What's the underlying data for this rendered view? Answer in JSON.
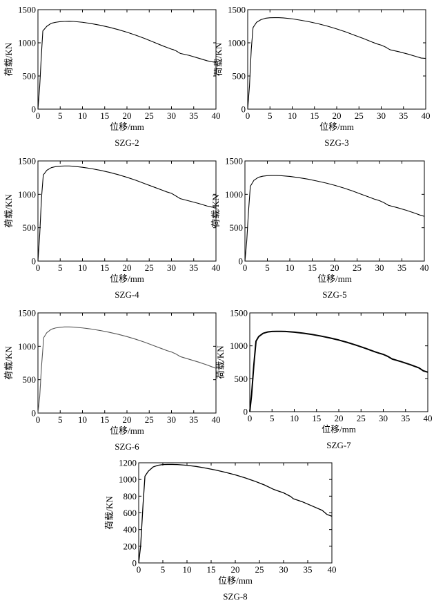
{
  "figure": {
    "background": "#ffffff"
  },
  "chart_data": [
    {
      "type": "line",
      "title": "SZG-2",
      "xlabel": "位移/mm",
      "ylabel": "荷载/KN",
      "xlim": [
        0,
        40
      ],
      "ylim": [
        0,
        1500
      ],
      "xticks": [
        0,
        5,
        10,
        15,
        20,
        25,
        30,
        35,
        40
      ],
      "yticks": [
        0,
        500,
        1000,
        1500
      ],
      "grid": false,
      "color": "#000000",
      "series": [
        {
          "x": [
            0,
            0.4,
            0.8,
            1.1,
            2,
            3,
            4,
            5,
            6,
            7,
            8,
            10,
            12,
            14,
            16,
            18,
            20,
            22,
            24,
            26,
            28,
            29,
            30,
            30.5,
            31,
            31.5,
            32,
            34,
            36,
            38,
            39,
            40
          ],
          "y": [
            0,
            350,
            850,
            1180,
            1250,
            1295,
            1310,
            1320,
            1323,
            1325,
            1323,
            1310,
            1290,
            1265,
            1235,
            1200,
            1160,
            1115,
            1065,
            1010,
            955,
            930,
            905,
            895,
            880,
            860,
            840,
            810,
            770,
            730,
            715,
            705
          ]
        }
      ]
    },
    {
      "type": "line",
      "title": "SZG-3",
      "xlabel": "位移/mm",
      "ylabel": "荷载/KN",
      "xlim": [
        0,
        40
      ],
      "ylim": [
        0,
        1500
      ],
      "xticks": [
        0,
        5,
        10,
        15,
        20,
        25,
        30,
        35,
        40
      ],
      "yticks": [
        0,
        500,
        1000,
        1500
      ],
      "grid": false,
      "color": "#000000",
      "series": [
        {
          "x": [
            0,
            0.4,
            0.8,
            1.2,
            2,
            3,
            4,
            5,
            6,
            7,
            8,
            10,
            12,
            14,
            16,
            18,
            20,
            22,
            24,
            26,
            28,
            29,
            30,
            30.5,
            31,
            31.5,
            32,
            34,
            36,
            38,
            39,
            40
          ],
          "y": [
            0,
            350,
            900,
            1230,
            1310,
            1350,
            1370,
            1378,
            1380,
            1380,
            1376,
            1362,
            1340,
            1315,
            1285,
            1250,
            1210,
            1165,
            1115,
            1065,
            1010,
            985,
            965,
            950,
            935,
            915,
            895,
            865,
            830,
            790,
            770,
            765
          ]
        }
      ]
    },
    {
      "type": "line",
      "title": "SZG-4",
      "xlabel": "位移/mm",
      "ylabel": "荷载/KN",
      "xlim": [
        0,
        40
      ],
      "ylim": [
        0,
        1500
      ],
      "xticks": [
        0,
        5,
        10,
        15,
        20,
        25,
        30,
        35,
        40
      ],
      "yticks": [
        0,
        500,
        1000,
        1500
      ],
      "grid": false,
      "color": "#000000",
      "series": [
        {
          "x": [
            0,
            0.4,
            0.8,
            1.2,
            2,
            3,
            4,
            5,
            6,
            7,
            8,
            10,
            12,
            14,
            16,
            18,
            20,
            22,
            24,
            26,
            28,
            29,
            30,
            30.5,
            31,
            31.5,
            32,
            34,
            36,
            38,
            39,
            40
          ],
          "y": [
            0,
            400,
            950,
            1290,
            1360,
            1400,
            1415,
            1422,
            1425,
            1425,
            1420,
            1405,
            1385,
            1360,
            1330,
            1295,
            1255,
            1210,
            1160,
            1110,
            1060,
            1035,
            1015,
            995,
            975,
            955,
            935,
            900,
            865,
            825,
            810,
            805
          ]
        }
      ]
    },
    {
      "type": "line",
      "title": "SZG-5",
      "xlabel": "位移/mm",
      "ylabel": "荷载/KN",
      "xlim": [
        0,
        40
      ],
      "ylim": [
        0,
        1500
      ],
      "xticks": [
        0,
        5,
        10,
        15,
        20,
        25,
        30,
        35,
        40
      ],
      "yticks": [
        0,
        500,
        1000,
        1500
      ],
      "grid": false,
      "color": "#000000",
      "series": [
        {
          "x": [
            0,
            0.4,
            0.8,
            1.2,
            2,
            3,
            4,
            5,
            6,
            7,
            8,
            10,
            12,
            14,
            16,
            18,
            20,
            22,
            24,
            26,
            28,
            29,
            30,
            30.5,
            31,
            31.5,
            32,
            34,
            36,
            38,
            39,
            40
          ],
          "y": [
            0,
            300,
            750,
            1120,
            1210,
            1255,
            1272,
            1280,
            1282,
            1282,
            1279,
            1268,
            1250,
            1228,
            1200,
            1170,
            1135,
            1095,
            1050,
            1000,
            950,
            925,
            905,
            890,
            875,
            855,
            835,
            800,
            760,
            715,
            690,
            670
          ]
        }
      ]
    },
    {
      "type": "line",
      "title": "SZG-6",
      "xlabel": "位移/mm",
      "ylabel": "荷载/KN",
      "xlim": [
        0,
        40
      ],
      "ylim": [
        0,
        1500
      ],
      "xticks": [
        0,
        5,
        10,
        15,
        20,
        25,
        30,
        35,
        40
      ],
      "yticks": [
        0,
        500,
        1000,
        1500
      ],
      "grid": false,
      "color": "#555555",
      "series": [
        {
          "x": [
            0,
            0.4,
            0.8,
            1.3,
            2,
            3,
            4,
            5,
            6,
            7,
            8,
            10,
            12,
            14,
            16,
            18,
            20,
            22,
            24,
            26,
            28,
            29,
            30,
            30.5,
            31,
            31.5,
            32,
            34,
            36,
            38,
            39,
            40
          ],
          "y": [
            0,
            250,
            700,
            1130,
            1205,
            1255,
            1275,
            1285,
            1290,
            1290,
            1287,
            1275,
            1258,
            1236,
            1210,
            1180,
            1145,
            1105,
            1060,
            1010,
            960,
            935,
            915,
            900,
            885,
            865,
            845,
            805,
            765,
            720,
            695,
            670
          ]
        }
      ]
    },
    {
      "type": "line",
      "title": "SZG-7",
      "xlabel": "位移/mm",
      "ylabel": "荷载/KN",
      "xlim": [
        0,
        40
      ],
      "ylim": [
        0,
        1500
      ],
      "xticks": [
        0,
        5,
        10,
        15,
        20,
        25,
        30,
        35,
        40
      ],
      "yticks": [
        0,
        500,
        1000,
        1500
      ],
      "grid": false,
      "color": "#000000",
      "series": [
        {
          "x": [
            0,
            0.4,
            0.9,
            1.4,
            2,
            3,
            4,
            5,
            6,
            7,
            8,
            10,
            12,
            14,
            16,
            18,
            20,
            22,
            24,
            26,
            28,
            29,
            30,
            30.5,
            31,
            31.5,
            32,
            34,
            36,
            38,
            39,
            40
          ],
          "y": [
            0,
            250,
            700,
            1070,
            1140,
            1190,
            1210,
            1218,
            1220,
            1220,
            1218,
            1208,
            1192,
            1172,
            1148,
            1120,
            1088,
            1050,
            1008,
            962,
            912,
            890,
            870,
            855,
            840,
            820,
            800,
            760,
            715,
            665,
            620,
            600
          ]
        }
      ]
    },
    {
      "type": "line",
      "title": "SZG-8",
      "xlabel": "位移/mm",
      "ylabel": "荷载/KN",
      "xlim": [
        0,
        40
      ],
      "ylim": [
        0,
        1200
      ],
      "xticks": [
        0,
        5,
        10,
        15,
        20,
        25,
        30,
        35,
        40
      ],
      "yticks": [
        0,
        200,
        400,
        600,
        800,
        1000,
        1200
      ],
      "grid": false,
      "color": "#000000",
      "series": [
        {
          "x": [
            0,
            0.4,
            0.9,
            1.3,
            2,
            3,
            4,
            5,
            6,
            7,
            8,
            10,
            12,
            14,
            16,
            18,
            20,
            22,
            24,
            26,
            28,
            29,
            30,
            30.5,
            31,
            31.5,
            32,
            34,
            36,
            38,
            39,
            40
          ],
          "y": [
            0,
            200,
            700,
            1040,
            1100,
            1150,
            1170,
            1178,
            1180,
            1180,
            1178,
            1170,
            1155,
            1135,
            1112,
            1085,
            1055,
            1020,
            980,
            935,
            880,
            860,
            840,
            825,
            810,
            795,
            770,
            730,
            680,
            630,
            580,
            560
          ]
        }
      ]
    }
  ]
}
